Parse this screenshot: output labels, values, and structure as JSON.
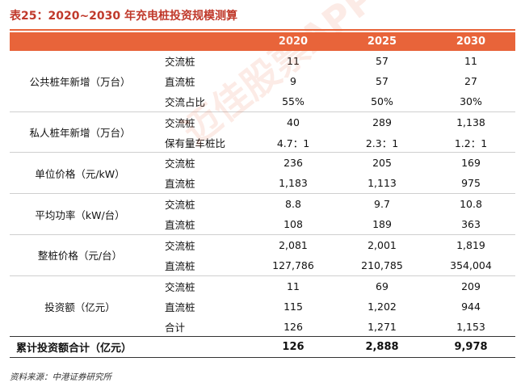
{
  "title": "表25：2020~2030 年充电桩投资规模测算",
  "watermark": "迈佳股票APP",
  "columns": [
    "",
    "",
    "2020",
    "2025",
    "2030"
  ],
  "groups": [
    {
      "label": "公共桩年新增（万台）",
      "rows": [
        {
          "sub": "交流桩",
          "v": [
            "11",
            "57",
            "11"
          ]
        },
        {
          "sub": "直流桩",
          "v": [
            "9",
            "57",
            "27"
          ]
        },
        {
          "sub": "交流占比",
          "v": [
            "55%",
            "50%",
            "30%"
          ]
        }
      ]
    },
    {
      "label": "私人桩年新增（万台）",
      "rows": [
        {
          "sub": "交流桩",
          "v": [
            "40",
            "289",
            "1,138"
          ]
        },
        {
          "sub": "保有量车桩比",
          "v": [
            "4.7：1",
            "2.3：1",
            "1.2：1"
          ]
        }
      ]
    },
    {
      "label": "单位价格（元/kW）",
      "rows": [
        {
          "sub": "交流桩",
          "v": [
            "236",
            "205",
            "169"
          ]
        },
        {
          "sub": "直流桩",
          "v": [
            "1,183",
            "1,113",
            "975"
          ]
        }
      ]
    },
    {
      "label": "平均功率（kW/台）",
      "rows": [
        {
          "sub": "交流桩",
          "v": [
            "8.8",
            "9.7",
            "10.8"
          ]
        },
        {
          "sub": "直流桩",
          "v": [
            "108",
            "189",
            "363"
          ]
        }
      ]
    },
    {
      "label": "整桩价格（元/台）",
      "rows": [
        {
          "sub": "交流桩",
          "v": [
            "2,081",
            "2,001",
            "1,819"
          ]
        },
        {
          "sub": "直流桩",
          "v": [
            "127,786",
            "210,785",
            "354,004"
          ]
        }
      ]
    },
    {
      "label": "投资额（亿元）",
      "rows": [
        {
          "sub": "交流桩",
          "v": [
            "11",
            "69",
            "209"
          ]
        },
        {
          "sub": "直流桩",
          "v": [
            "115",
            "1,202",
            "944"
          ]
        },
        {
          "sub": "合计",
          "v": [
            "126",
            "1,271",
            "1,153"
          ]
        }
      ]
    }
  ],
  "total": {
    "label": "累计投资额合计（亿元）",
    "v": [
      "126",
      "2,888",
      "9,978"
    ]
  },
  "source": "资料来源：中港证券研究所"
}
